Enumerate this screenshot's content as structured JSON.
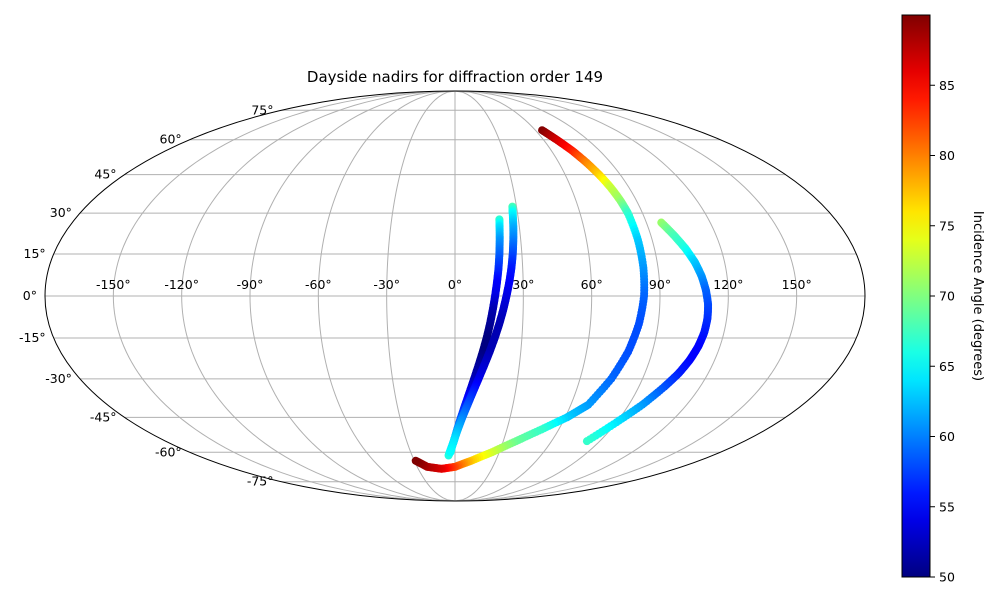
{
  "chart_data": {
    "type": "scatter",
    "projection": "mollweide",
    "title": "Dayside nadirs for diffraction order 149",
    "grid": true,
    "longitude_ticks": [
      -150,
      -120,
      -90,
      -60,
      -30,
      0,
      30,
      60,
      90,
      120,
      150
    ],
    "longitude_tick_labels": [
      "-150°",
      "-120°",
      "-90°",
      "-60°",
      "-30°",
      "0°",
      "30°",
      "60°",
      "90°",
      "120°",
      "150°"
    ],
    "latitude_ticks": [
      -75,
      -60,
      -45,
      -30,
      -15,
      0,
      15,
      30,
      45,
      60,
      75
    ],
    "latitude_tick_labels": [
      "-75°",
      "-60°",
      "-45°",
      "-30°",
      "-15°",
      "0°",
      "15°",
      "30°",
      "45°",
      "60°",
      "75°"
    ],
    "colorbar": {
      "label": "Incidence Angle (degrees)",
      "colormap": "jet",
      "range": [
        50,
        90
      ],
      "ticks": [
        50,
        55,
        60,
        65,
        70,
        75,
        80,
        85
      ],
      "tick_labels": [
        "50",
        "55",
        "60",
        "65",
        "70",
        "75",
        "80",
        "85"
      ]
    },
    "series": [
      {
        "lon": [
          21,
          20.8,
          20.4,
          19.9,
          19.3,
          18.5,
          17.6,
          16.6,
          15.5,
          14.2,
          12.7,
          11,
          9.2,
          7.3,
          5.3,
          3.3,
          1.3,
          -0.7,
          -2.7,
          -4.5
        ],
        "lat": [
          27.7,
          25,
          20,
          15,
          10,
          5,
          0,
          -5,
          -10,
          -15,
          -20,
          -25,
          -30,
          -35,
          -40,
          -45,
          -50,
          -55,
          -58.6,
          -61.5
        ],
        "incidence": [
          67,
          64,
          61,
          59,
          57,
          55,
          54,
          52,
          51,
          50,
          50,
          51,
          52,
          54,
          56,
          58,
          60,
          62,
          64,
          66
        ]
      },
      {
        "lon": [
          28,
          27.7,
          27.2,
          26.6,
          25.9,
          25,
          23.9,
          22.6,
          21.2,
          19.6,
          17.8,
          15.8,
          13.6,
          11.3,
          8.9,
          6.5,
          4,
          1.6,
          -0.8,
          -3.1
        ],
        "lat": [
          32.5,
          30,
          25,
          20,
          15,
          10,
          5,
          0,
          -5,
          -10,
          -15,
          -20,
          -25,
          -30,
          -35,
          -40,
          -45,
          -50,
          -55,
          -60
        ],
        "incidence": [
          68,
          65,
          62,
          60,
          58,
          56,
          55,
          54,
          53,
          52,
          52,
          52,
          53,
          54,
          56,
          58,
          60,
          62,
          64,
          65
        ]
      },
      {
        "lon": [
          65,
          69,
          73,
          76,
          78.5,
          80.5,
          82,
          83,
          83.5,
          83.5,
          83,
          81.5,
          79,
          75,
          69,
          61,
          50,
          38,
          25,
          12,
          0,
          -11,
          -22,
          -29
        ],
        "lat": [
          64.5,
          60,
          55,
          50,
          45,
          40,
          35,
          30,
          20,
          10,
          0,
          -10,
          -20,
          -30,
          -40,
          -45,
          -50,
          -55,
          -60,
          -64,
          -67,
          -68,
          -67,
          -64
        ],
        "incidence": [
          90,
          87,
          84,
          80,
          77,
          73,
          71,
          67,
          63,
          61,
          59,
          58,
          58,
          59,
          61,
          63,
          67,
          69,
          73,
          77,
          82,
          86,
          88,
          90
        ]
      },
      {
        "lon": [
          97,
          100.5,
          104,
          106.8,
          108.8,
          110.2,
          111.2,
          111.5,
          111.2,
          110.2,
          108.5,
          106,
          102.5,
          97,
          90,
          82
        ],
        "lat": [
          26.5,
          22,
          17,
          12,
          7,
          2,
          -3,
          -8,
          -13,
          -18,
          -23,
          -28,
          -33,
          -40,
          -47,
          -55
        ],
        "incidence": [
          71,
          68,
          66,
          63,
          61,
          59,
          58,
          57,
          56,
          55,
          55,
          56,
          58,
          61,
          64,
          67
        ]
      }
    ]
  }
}
